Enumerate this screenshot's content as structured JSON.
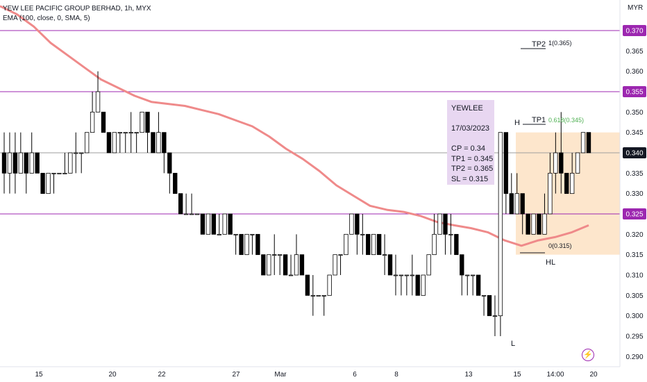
{
  "header": {
    "title": "YEW LEE PACIFIC GROUP BERHAD, 1h, MYX",
    "indicator": "EMA (100, close, 0, SMA, 5)",
    "currency": "MYR"
  },
  "info_box": {
    "lines": [
      "YEWLEE",
      "17/03/2023",
      "CP = 0.34",
      "TP1 = 0.345",
      "TP2 = 0.365",
      "SL = 0.315"
    ]
  },
  "annotations": {
    "h": "H",
    "l": "L",
    "hl": "HL",
    "tp1": "TP1",
    "tp2": "TP2",
    "fib_tp1": "0.618(0.345)",
    "fib_tp2": "1(0.365)",
    "fib_sl": "0(0.315)"
  },
  "colors": {
    "candle": "#000000",
    "ema": "#ef8a8a",
    "hline": "#9c27b0",
    "price_line": "#9e9e9e",
    "zone": "#fde6cc",
    "info_box": "#e8d7f1",
    "fib_green": "#4caf50"
  },
  "chart_data": {
    "type": "candlestick",
    "ylim": [
      0.2875,
      0.3775
    ],
    "y_ticks": [
      0.29,
      0.295,
      0.3,
      0.305,
      0.31,
      0.315,
      0.32,
      0.325,
      0.33,
      0.335,
      0.34,
      0.345,
      0.35,
      0.355,
      0.36,
      0.365,
      0.37
    ],
    "highlighted_levels": [
      0.37,
      0.355,
      0.325,
      0.34
    ],
    "last_price": 0.34,
    "x_ticks": [
      "15",
      "20",
      "22",
      "27",
      "Mar",
      "6",
      "8",
      "13",
      "15",
      "14:00",
      "20"
    ],
    "candles": [
      [
        0.34,
        0.335,
        0.345,
        0.33
      ],
      [
        0.335,
        0.34,
        0.345,
        0.33
      ],
      [
        0.34,
        0.335,
        0.345,
        0.33
      ],
      [
        0.335,
        0.34,
        0.345,
        0.335
      ],
      [
        0.34,
        0.335,
        0.34,
        0.33
      ],
      [
        0.335,
        0.34,
        0.345,
        0.335
      ],
      [
        0.34,
        0.335,
        0.34,
        0.335
      ],
      [
        0.335,
        0.33,
        0.335,
        0.33
      ],
      [
        0.33,
        0.335,
        0.335,
        0.33
      ],
      [
        0.335,
        0.335,
        0.335,
        0.33
      ],
      [
        0.335,
        0.335,
        0.335,
        0.335
      ],
      [
        0.335,
        0.335,
        0.34,
        0.335
      ],
      [
        0.335,
        0.34,
        0.34,
        0.335
      ],
      [
        0.34,
        0.34,
        0.345,
        0.335
      ],
      [
        0.34,
        0.34,
        0.34,
        0.335
      ],
      [
        0.34,
        0.345,
        0.345,
        0.34
      ],
      [
        0.345,
        0.35,
        0.355,
        0.345
      ],
      [
        0.35,
        0.355,
        0.36,
        0.35
      ],
      [
        0.35,
        0.345,
        0.35,
        0.345
      ],
      [
        0.345,
        0.34,
        0.345,
        0.34
      ],
      [
        0.34,
        0.345,
        0.345,
        0.34
      ],
      [
        0.345,
        0.345,
        0.345,
        0.34
      ],
      [
        0.345,
        0.345,
        0.345,
        0.34
      ],
      [
        0.345,
        0.345,
        0.35,
        0.34
      ],
      [
        0.345,
        0.345,
        0.345,
        0.34
      ],
      [
        0.345,
        0.35,
        0.35,
        0.345
      ],
      [
        0.35,
        0.345,
        0.35,
        0.34
      ],
      [
        0.345,
        0.34,
        0.345,
        0.34
      ],
      [
        0.34,
        0.345,
        0.35,
        0.34
      ],
      [
        0.345,
        0.34,
        0.345,
        0.335
      ],
      [
        0.34,
        0.335,
        0.34,
        0.33
      ],
      [
        0.335,
        0.33,
        0.335,
        0.33
      ],
      [
        0.33,
        0.325,
        0.33,
        0.325
      ],
      [
        0.325,
        0.325,
        0.33,
        0.325
      ],
      [
        0.325,
        0.325,
        0.33,
        0.325
      ],
      [
        0.325,
        0.325,
        0.325,
        0.325
      ],
      [
        0.325,
        0.32,
        0.325,
        0.32
      ],
      [
        0.32,
        0.325,
        0.325,
        0.32
      ],
      [
        0.325,
        0.32,
        0.325,
        0.32
      ],
      [
        0.32,
        0.32,
        0.325,
        0.32
      ],
      [
        0.32,
        0.325,
        0.325,
        0.32
      ],
      [
        0.325,
        0.32,
        0.325,
        0.32
      ],
      [
        0.32,
        0.32,
        0.32,
        0.315
      ],
      [
        0.32,
        0.315,
        0.32,
        0.315
      ],
      [
        0.315,
        0.32,
        0.32,
        0.315
      ],
      [
        0.32,
        0.32,
        0.32,
        0.315
      ],
      [
        0.32,
        0.315,
        0.32,
        0.315
      ],
      [
        0.315,
        0.31,
        0.315,
        0.31
      ],
      [
        0.31,
        0.315,
        0.315,
        0.31
      ],
      [
        0.315,
        0.315,
        0.32,
        0.31
      ],
      [
        0.315,
        0.315,
        0.315,
        0.31
      ],
      [
        0.315,
        0.31,
        0.315,
        0.31
      ],
      [
        0.31,
        0.31,
        0.315,
        0.31
      ],
      [
        0.31,
        0.315,
        0.32,
        0.31
      ],
      [
        0.315,
        0.31,
        0.315,
        0.31
      ],
      [
        0.31,
        0.305,
        0.31,
        0.305
      ],
      [
        0.305,
        0.305,
        0.31,
        0.3
      ],
      [
        0.305,
        0.305,
        0.305,
        0.305
      ],
      [
        0.305,
        0.305,
        0.305,
        0.3
      ],
      [
        0.305,
        0.31,
        0.31,
        0.305
      ],
      [
        0.31,
        0.315,
        0.315,
        0.31
      ],
      [
        0.315,
        0.315,
        0.315,
        0.31
      ],
      [
        0.315,
        0.32,
        0.32,
        0.315
      ],
      [
        0.32,
        0.325,
        0.325,
        0.32
      ],
      [
        0.325,
        0.32,
        0.325,
        0.315
      ],
      [
        0.32,
        0.32,
        0.325,
        0.315
      ],
      [
        0.32,
        0.315,
        0.32,
        0.315
      ],
      [
        0.315,
        0.32,
        0.32,
        0.315
      ],
      [
        0.32,
        0.315,
        0.32,
        0.315
      ],
      [
        0.315,
        0.315,
        0.32,
        0.31
      ],
      [
        0.315,
        0.31,
        0.315,
        0.31
      ],
      [
        0.31,
        0.31,
        0.315,
        0.305
      ],
      [
        0.31,
        0.31,
        0.31,
        0.305
      ],
      [
        0.31,
        0.31,
        0.31,
        0.305
      ],
      [
        0.31,
        0.31,
        0.315,
        0.305
      ],
      [
        0.31,
        0.305,
        0.31,
        0.305
      ],
      [
        0.305,
        0.31,
        0.31,
        0.305
      ],
      [
        0.31,
        0.315,
        0.315,
        0.31
      ],
      [
        0.315,
        0.32,
        0.325,
        0.315
      ],
      [
        0.32,
        0.325,
        0.325,
        0.32
      ],
      [
        0.325,
        0.32,
        0.325,
        0.315
      ],
      [
        0.32,
        0.32,
        0.325,
        0.315
      ],
      [
        0.32,
        0.315,
        0.32,
        0.315
      ],
      [
        0.315,
        0.31,
        0.315,
        0.305
      ],
      [
        0.31,
        0.31,
        0.31,
        0.305
      ],
      [
        0.31,
        0.31,
        0.31,
        0.305
      ],
      [
        0.31,
        0.305,
        0.31,
        0.305
      ],
      [
        0.305,
        0.305,
        0.305,
        0.3
      ],
      [
        0.305,
        0.3,
        0.305,
        0.3
      ],
      [
        0.3,
        0.3,
        0.305,
        0.295
      ],
      [
        0.3,
        0.345,
        0.345,
        0.295
      ],
      [
        0.345,
        0.33,
        0.345,
        0.325
      ],
      [
        0.33,
        0.325,
        0.335,
        0.325
      ],
      [
        0.325,
        0.33,
        0.335,
        0.325
      ],
      [
        0.33,
        0.325,
        0.33,
        0.32
      ],
      [
        0.325,
        0.32,
        0.325,
        0.32
      ],
      [
        0.32,
        0.325,
        0.325,
        0.32
      ],
      [
        0.325,
        0.32,
        0.325,
        0.32
      ],
      [
        0.32,
        0.325,
        0.33,
        0.32
      ],
      [
        0.325,
        0.335,
        0.34,
        0.325
      ],
      [
        0.335,
        0.34,
        0.345,
        0.33
      ],
      [
        0.34,
        0.335,
        0.35,
        0.33
      ],
      [
        0.335,
        0.33,
        0.335,
        0.33
      ],
      [
        0.33,
        0.335,
        0.34,
        0.33
      ],
      [
        0.335,
        0.34,
        0.34,
        0.335
      ],
      [
        0.34,
        0.345,
        0.345,
        0.34
      ],
      [
        0.345,
        0.34,
        0.345,
        0.34
      ]
    ],
    "ema": [
      0.376,
      0.374,
      0.371,
      0.367,
      0.364,
      0.361,
      0.358,
      0.356,
      0.354,
      0.3525,
      0.352,
      0.3515,
      0.3505,
      0.3495,
      0.348,
      0.3465,
      0.344,
      0.341,
      0.3385,
      0.3355,
      0.332,
      0.3295,
      0.327,
      0.326,
      0.3255,
      0.3245,
      0.323,
      0.3222,
      0.3215,
      0.3205,
      0.3185,
      0.3172,
      0.3185,
      0.3193,
      0.3205,
      0.3222
    ],
    "zone": [
      0.315,
      0.345
    ]
  }
}
